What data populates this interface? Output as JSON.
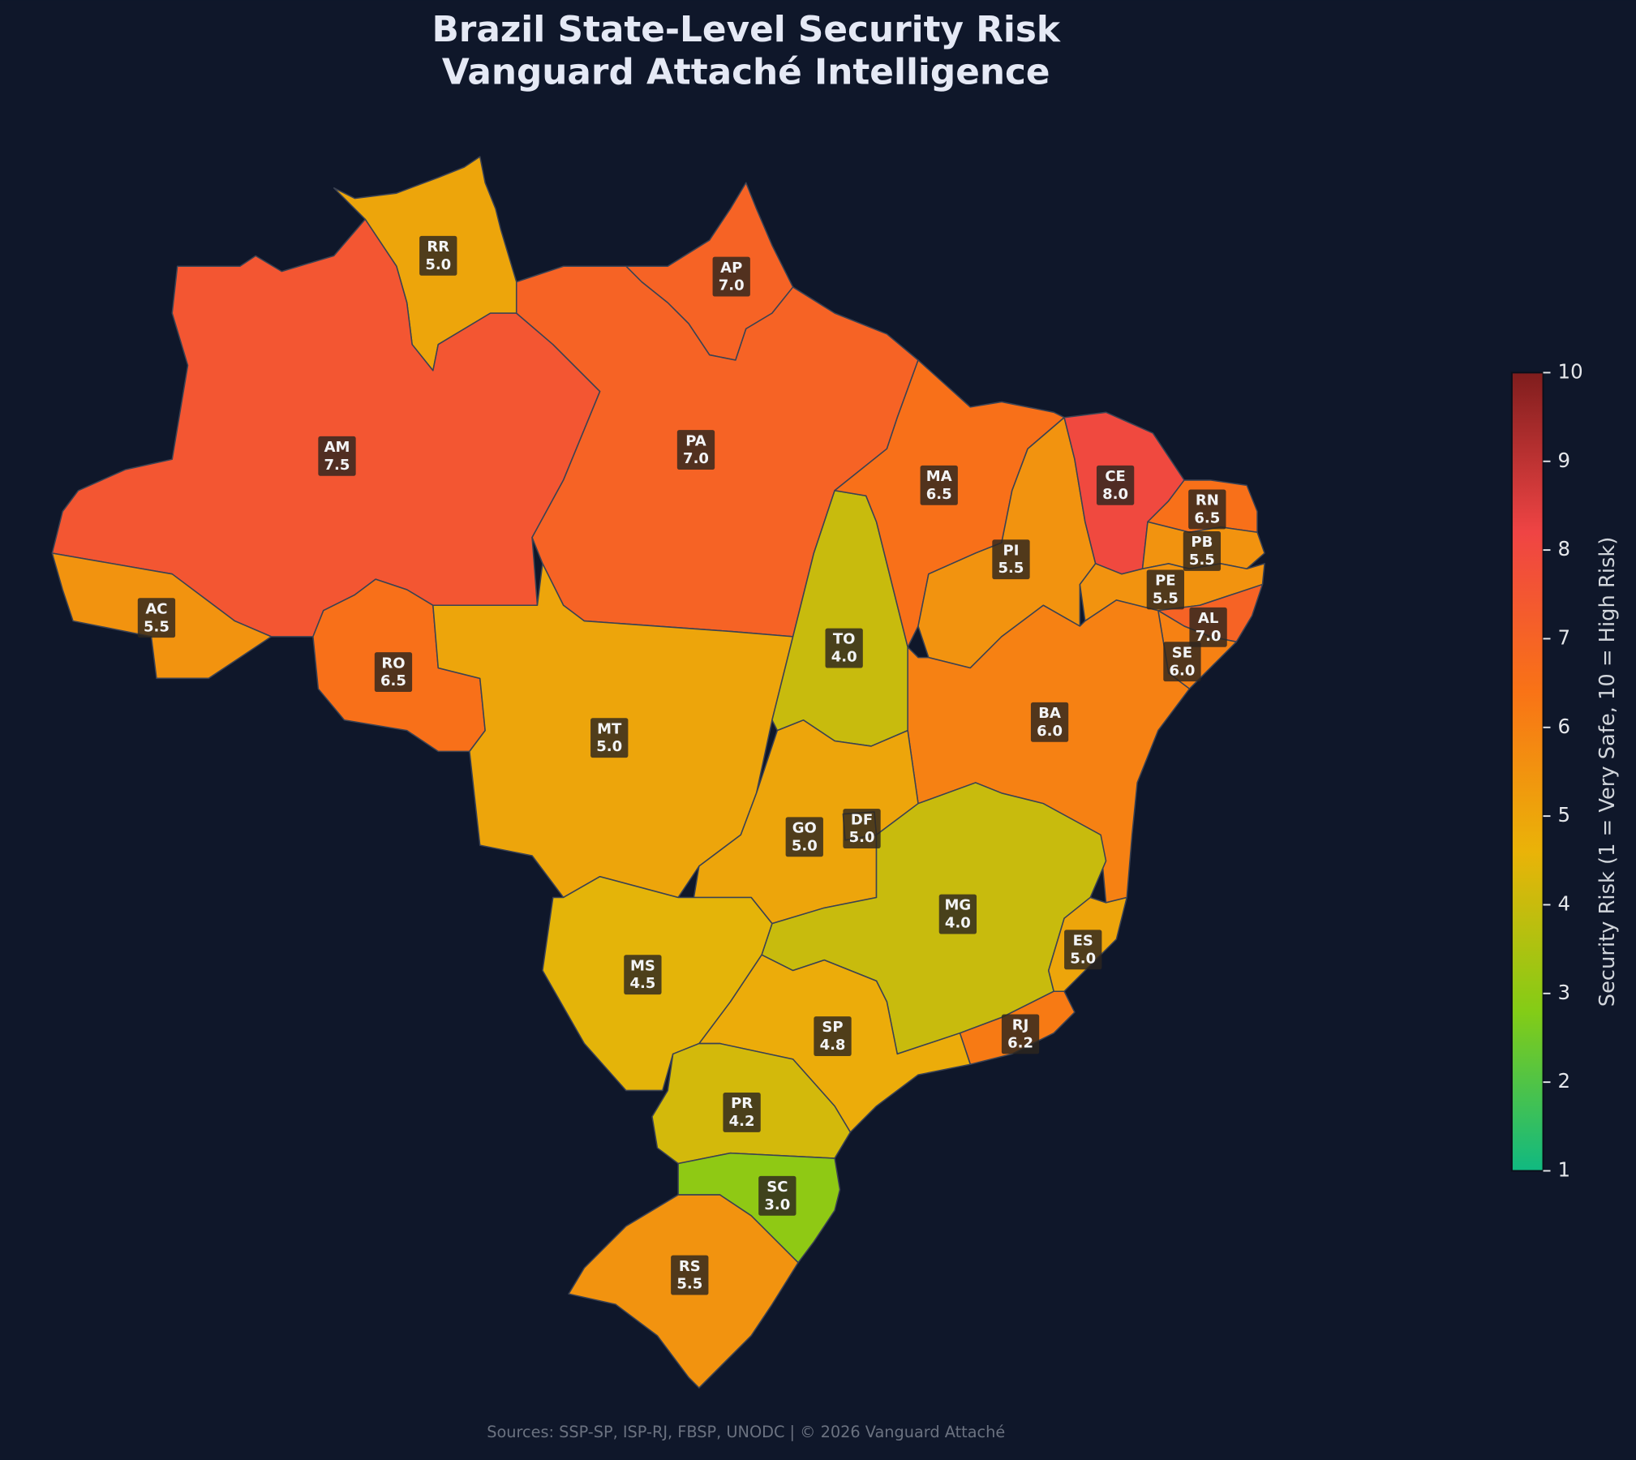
{
  "title": "Brazil State-Level Security Risk",
  "subtitle": "Vanguard Attaché Intelligence",
  "source": "Sources: SSP-SP, ISP-RJ, FBSP, UNODC | © 2026 Vanguard Attaché",
  "colorbar": {
    "label": "Security Risk (1 = Very Safe, 10 = High Risk)",
    "lim": [
      1,
      10
    ],
    "ticks": [
      1,
      2,
      3,
      4,
      5,
      6,
      7,
      8,
      9,
      10
    ],
    "colorscale": [
      "#10b981",
      "#84cc16",
      "#eab308",
      "#f97316",
      "#ef4444",
      "#7f1d1d"
    ]
  },
  "states": [
    {
      "code": "RR",
      "value": 5,
      "value_label": "5.0"
    },
    {
      "code": "AP",
      "value": 7,
      "value_label": "7.0"
    },
    {
      "code": "AM",
      "value": 7.5,
      "value_label": "7.5"
    },
    {
      "code": "PA",
      "value": 7,
      "value_label": "7.0"
    },
    {
      "code": "AC",
      "value": 5.5,
      "value_label": "5.5"
    },
    {
      "code": "RO",
      "value": 6.5,
      "value_label": "6.5"
    },
    {
      "code": "MT",
      "value": 5,
      "value_label": "5.0"
    },
    {
      "code": "TO",
      "value": 4,
      "value_label": "4.0"
    },
    {
      "code": "MA",
      "value": 6.5,
      "value_label": "6.5"
    },
    {
      "code": "PI",
      "value": 5.5,
      "value_label": "5.5"
    },
    {
      "code": "CE",
      "value": 8,
      "value_label": "8.0"
    },
    {
      "code": "RN",
      "value": 6.5,
      "value_label": "6.5"
    },
    {
      "code": "PB",
      "value": 5.5,
      "value_label": "5.5"
    },
    {
      "code": "PE",
      "value": 5.5,
      "value_label": "5.5"
    },
    {
      "code": "AL",
      "value": 7,
      "value_label": "7.0"
    },
    {
      "code": "SE",
      "value": 6,
      "value_label": "6.0"
    },
    {
      "code": "BA",
      "value": 6,
      "value_label": "6.0"
    },
    {
      "code": "GO",
      "value": 5,
      "value_label": "5.0"
    },
    {
      "code": "DF",
      "value": 5,
      "value_label": "5.0"
    },
    {
      "code": "MG",
      "value": 4,
      "value_label": "4.0"
    },
    {
      "code": "ES",
      "value": 5,
      "value_label": "5.0"
    },
    {
      "code": "RJ",
      "value": 6.2,
      "value_label": "6.2"
    },
    {
      "code": "SP",
      "value": 4.8,
      "value_label": "4.8"
    },
    {
      "code": "MS",
      "value": 4.5,
      "value_label": "4.5"
    },
    {
      "code": "PR",
      "value": 4.2,
      "value_label": "4.2"
    },
    {
      "code": "SC",
      "value": 3,
      "value_label": "3.0"
    },
    {
      "code": "RS",
      "value": 5.5,
      "value_label": "5.5"
    }
  ]
}
